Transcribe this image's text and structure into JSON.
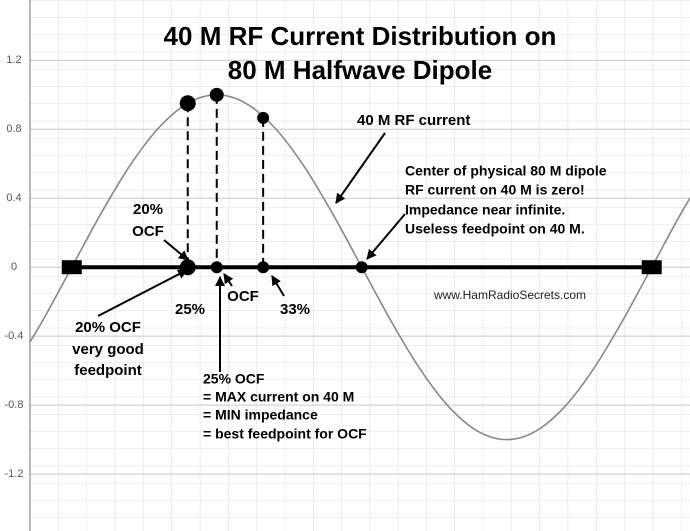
{
  "chart_data": {
    "type": "line",
    "title": [
      "40 M RF Current Distribution on",
      "80 M Halfwave Dipole"
    ],
    "x": [
      -10,
      -5,
      0,
      5,
      10,
      15,
      20,
      25,
      30,
      35,
      40,
      45,
      50,
      55,
      60,
      65,
      70,
      75,
      80,
      85,
      90,
      95,
      100,
      105,
      110
    ],
    "series": [
      {
        "name": "40 M RF current",
        "color": "#888888",
        "values": [
          -0.588,
          -0.309,
          0,
          0.309,
          0.588,
          0.809,
          0.951,
          1,
          0.951,
          0.809,
          0.588,
          0.309,
          0,
          -0.309,
          -0.588,
          -0.809,
          -0.951,
          -1,
          -0.951,
          -0.809,
          -0.588,
          -0.309,
          0,
          0.309,
          0.588
        ]
      }
    ],
    "wire": {
      "x": [
        0,
        100
      ],
      "values": [
        0,
        0
      ],
      "color": "#000000"
    },
    "curve_points": {
      "x": [
        20,
        25,
        33
      ],
      "values": [
        0.951,
        1,
        0.866
      ]
    },
    "axis_points": {
      "x": [
        20,
        25,
        33,
        50
      ],
      "values": [
        0,
        0,
        0,
        0
      ]
    },
    "xlim": [
      -7.2,
      106.6
    ],
    "ylim": [
      -1.53,
      1.55
    ],
    "yticks": [
      -1.2,
      -0.8,
      -0.4,
      0,
      0.4,
      0.8,
      1.2
    ],
    "grid": true,
    "annotations": [
      [
        "40 M RF current"
      ],
      [
        "Center of physical 80 M dipole",
        "RF current on 40 M is zero!",
        "Impedance near infinite.",
        "Useless feedpoint on 40 M."
      ],
      [
        "20%",
        "OCF"
      ],
      [
        "25%"
      ],
      [
        "OCF"
      ],
      [
        "33%"
      ],
      [
        "20% OCF",
        "very good",
        "feedpoint"
      ],
      [
        "25% OCF",
        "= MAX current on 40 M",
        "= MIN impedance",
        "= best feedpoint for OCF"
      ],
      [
        "www.HamRadioSecrets.com"
      ]
    ]
  }
}
